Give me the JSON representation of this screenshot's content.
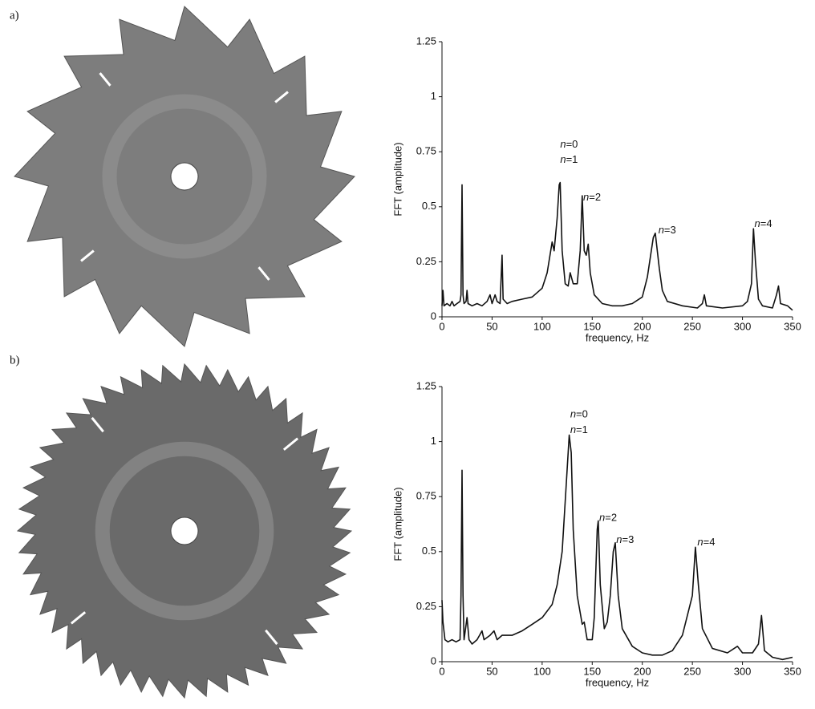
{
  "chart_data": [
    {
      "type": "line",
      "panel_label": "a)",
      "xlabel": "frequency, Hz",
      "ylabel": "FFT (amplitude)",
      "xlim": [
        0,
        350
      ],
      "ylim": [
        0,
        1.25
      ],
      "xticks": [
        0,
        50,
        100,
        150,
        200,
        250,
        300,
        350
      ],
      "yticks": [
        0,
        0.25,
        0.5,
        0.75,
        1,
        1.25
      ],
      "x": [
        0,
        1,
        2,
        5,
        8,
        10,
        12,
        15,
        18,
        19,
        20,
        21,
        22,
        24,
        25,
        26,
        30,
        35,
        40,
        45,
        48,
        50,
        53,
        55,
        58,
        60,
        61,
        65,
        70,
        80,
        90,
        100,
        105,
        110,
        112,
        115,
        117,
        118,
        120,
        123,
        126,
        128,
        131,
        135,
        138,
        140,
        142,
        144,
        146,
        148,
        152,
        160,
        170,
        180,
        190,
        200,
        205,
        208,
        211,
        213,
        215,
        217,
        220,
        225,
        240,
        255,
        260,
        262,
        264,
        280,
        300,
        305,
        309,
        311,
        313,
        316,
        320,
        330,
        334,
        336,
        338,
        345,
        350
      ],
      "series": [
        {
          "color": "#111111",
          "values": [
            0.05,
            0.12,
            0.05,
            0.06,
            0.05,
            0.07,
            0.05,
            0.06,
            0.07,
            0.1,
            0.6,
            0.1,
            0.06,
            0.07,
            0.12,
            0.06,
            0.05,
            0.06,
            0.05,
            0.07,
            0.1,
            0.06,
            0.1,
            0.07,
            0.06,
            0.28,
            0.08,
            0.06,
            0.07,
            0.08,
            0.09,
            0.13,
            0.2,
            0.34,
            0.3,
            0.45,
            0.6,
            0.61,
            0.3,
            0.15,
            0.14,
            0.2,
            0.15,
            0.15,
            0.3,
            0.55,
            0.3,
            0.28,
            0.33,
            0.2,
            0.1,
            0.06,
            0.05,
            0.05,
            0.06,
            0.09,
            0.18,
            0.27,
            0.36,
            0.38,
            0.3,
            0.22,
            0.12,
            0.07,
            0.05,
            0.04,
            0.06,
            0.1,
            0.05,
            0.04,
            0.05,
            0.07,
            0.15,
            0.4,
            0.25,
            0.08,
            0.05,
            0.04,
            0.1,
            0.14,
            0.06,
            0.05,
            0.03
          ]
        }
      ],
      "annotations": [
        {
          "text": "n=0",
          "x": 118,
          "y": 0.78
        },
        {
          "text": "n=1",
          "x": 118,
          "y": 0.71
        },
        {
          "text": "n=2",
          "x": 141,
          "y": 0.54
        },
        {
          "text": "n=3",
          "x": 216,
          "y": 0.39
        },
        {
          "text": "n=4",
          "x": 312,
          "y": 0.42
        }
      ]
    },
    {
      "type": "line",
      "panel_label": "b)",
      "xlabel": "frequency, Hz",
      "ylabel": "FFT (amplitude)",
      "xlim": [
        0,
        350
      ],
      "ylim": [
        0,
        1.25
      ],
      "xticks": [
        0,
        50,
        100,
        150,
        200,
        250,
        300,
        350
      ],
      "yticks": [
        0,
        0.25,
        0.5,
        0.75,
        1,
        1.25
      ],
      "x": [
        0,
        1,
        3,
        6,
        10,
        14,
        18,
        19,
        20,
        21,
        22,
        25,
        27,
        30,
        35,
        40,
        42,
        48,
        52,
        55,
        60,
        70,
        80,
        90,
        100,
        110,
        115,
        120,
        124,
        127,
        129,
        131,
        135,
        140,
        142,
        145,
        150,
        152,
        155,
        156,
        158,
        162,
        165,
        168,
        171,
        173,
        176,
        180,
        190,
        200,
        210,
        220,
        230,
        240,
        250,
        253,
        256,
        260,
        270,
        285,
        295,
        300,
        310,
        316,
        319,
        322,
        330,
        340,
        350
      ],
      "series": [
        {
          "color": "#111111",
          "values": [
            0.28,
            0.18,
            0.1,
            0.09,
            0.1,
            0.09,
            0.1,
            0.3,
            0.87,
            0.3,
            0.1,
            0.2,
            0.1,
            0.08,
            0.1,
            0.14,
            0.1,
            0.12,
            0.14,
            0.1,
            0.12,
            0.12,
            0.14,
            0.17,
            0.2,
            0.26,
            0.35,
            0.5,
            0.8,
            1.03,
            0.95,
            0.6,
            0.3,
            0.17,
            0.18,
            0.1,
            0.1,
            0.2,
            0.6,
            0.64,
            0.35,
            0.15,
            0.18,
            0.3,
            0.5,
            0.54,
            0.3,
            0.15,
            0.07,
            0.04,
            0.03,
            0.03,
            0.05,
            0.12,
            0.3,
            0.52,
            0.35,
            0.15,
            0.06,
            0.04,
            0.07,
            0.04,
            0.04,
            0.08,
            0.21,
            0.05,
            0.02,
            0.01,
            0.02
          ]
        }
      ],
      "annotations": [
        {
          "text": "n=0",
          "x": 128,
          "y": 1.12
        },
        {
          "text": "n=1",
          "x": 128,
          "y": 1.05
        },
        {
          "text": "n=2",
          "x": 157,
          "y": 0.65
        },
        {
          "text": "n=3",
          "x": 174,
          "y": 0.55
        },
        {
          "text": "n=4",
          "x": 255,
          "y": 0.54
        }
      ]
    }
  ]
}
